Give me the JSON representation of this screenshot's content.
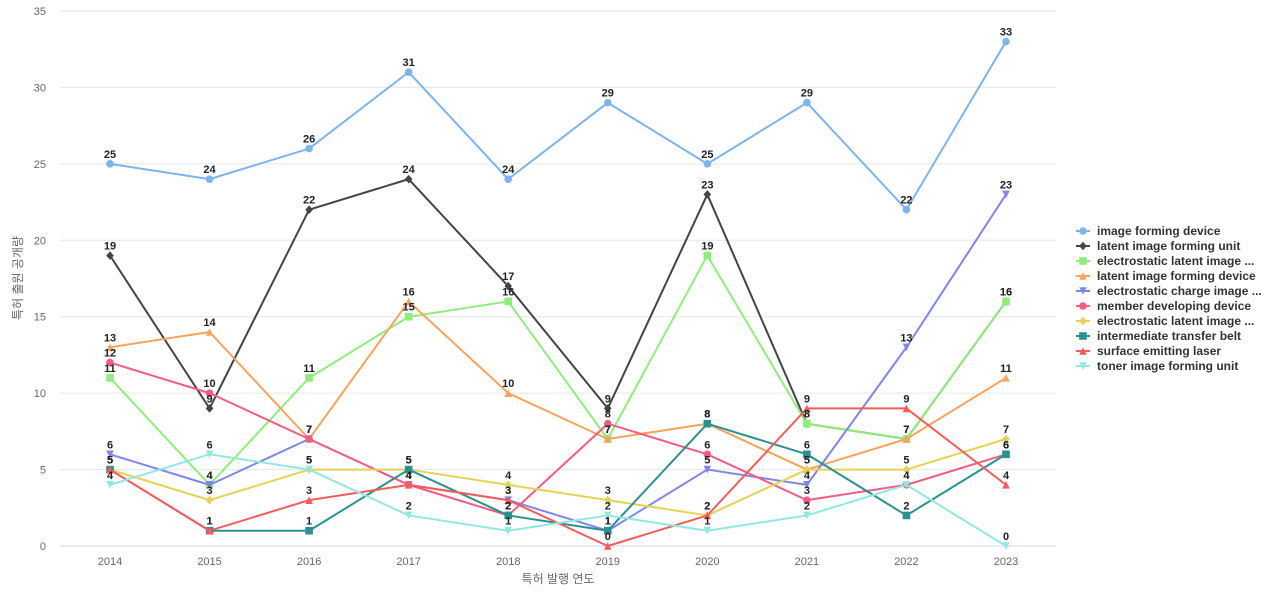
{
  "chart_data": {
    "type": "line",
    "title": "",
    "xlabel": "특허 발행 연도",
    "ylabel": "특허 출원 공개량",
    "categories": [
      "2014",
      "2015",
      "2016",
      "2017",
      "2018",
      "2019",
      "2020",
      "2021",
      "2022",
      "2023"
    ],
    "y_ticks": [
      "0",
      "5",
      "10",
      "15",
      "20",
      "25",
      "30",
      "35"
    ],
    "ylim": [
      0,
      35
    ],
    "grid": true,
    "legend_position": "right",
    "series": [
      {
        "name": "image forming device",
        "color": "#7cb5ec",
        "marker": "circle",
        "values": [
          25,
          24,
          26,
          31,
          24,
          29,
          25,
          29,
          22,
          33
        ]
      },
      {
        "name": "latent image forming unit",
        "color": "#434348",
        "marker": "diamond",
        "values": [
          19,
          9,
          22,
          24,
          17,
          9,
          23,
          8,
          7,
          16
        ]
      },
      {
        "name": "electrostatic latent image ...",
        "color": "#90ed7d",
        "marker": "square",
        "values": [
          11,
          4,
          11,
          15,
          16,
          7,
          19,
          8,
          7,
          16
        ]
      },
      {
        "name": "latent image forming device",
        "color": "#f7a35c",
        "marker": "triangle",
        "values": [
          13,
          14,
          7,
          16,
          10,
          7,
          8,
          5,
          7,
          11
        ]
      },
      {
        "name": "electrostatic charge image ...",
        "color": "#8085e9",
        "marker": "triangle-down",
        "values": [
          6,
          4,
          7,
          4,
          3,
          1,
          5,
          4,
          13,
          23
        ]
      },
      {
        "name": "member developing device",
        "color": "#f15c80",
        "marker": "circle",
        "values": [
          12,
          10,
          7,
          4,
          2,
          8,
          6,
          3,
          4,
          6
        ]
      },
      {
        "name": "electrostatic latent image ...",
        "color": "#e4d354",
        "marker": "diamond",
        "values": [
          5,
          3,
          5,
          5,
          4,
          3,
          2,
          5,
          5,
          7
        ]
      },
      {
        "name": "intermediate transfer belt",
        "color": "#2b908f",
        "marker": "square",
        "values": [
          5,
          1,
          1,
          5,
          2,
          1,
          8,
          6,
          2,
          6
        ]
      },
      {
        "name": "surface emitting laser",
        "color": "#f45b5b",
        "marker": "triangle",
        "values": [
          5,
          1,
          3,
          4,
          3,
          0,
          2,
          9,
          9,
          4
        ]
      },
      {
        "name": "toner image forming unit",
        "color": "#91e8e1",
        "marker": "triangle-down",
        "values": [
          4,
          6,
          5,
          2,
          1,
          2,
          1,
          2,
          4,
          0
        ]
      }
    ]
  }
}
